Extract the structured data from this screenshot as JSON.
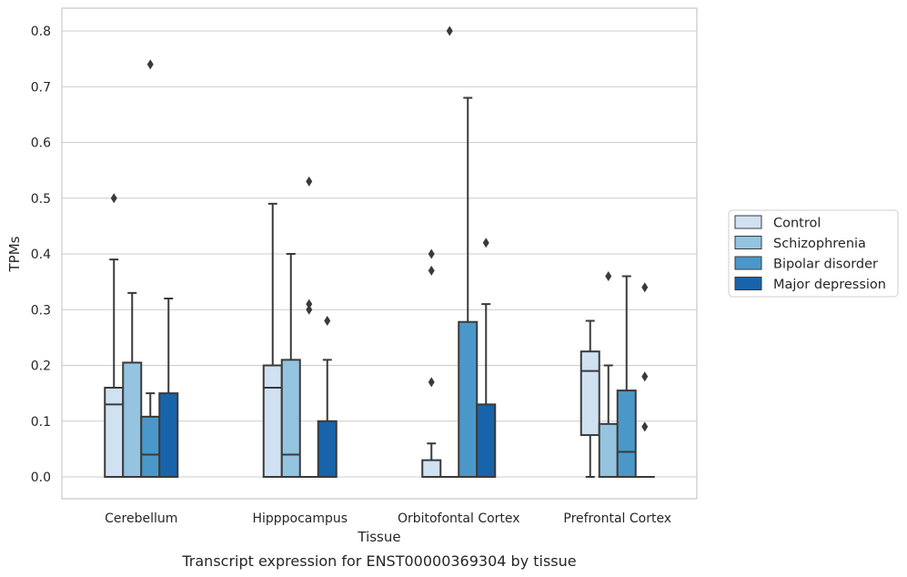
{
  "caption": "Transcript expression for ENST00000369304 by tissue",
  "chart_data": {
    "type": "box",
    "xlabel": "Tissue",
    "ylabel": "TPMs",
    "ylim": [
      -0.04,
      0.84
    ],
    "yticks": [
      "0.0",
      "0.1",
      "0.2",
      "0.3",
      "0.4",
      "0.5",
      "0.6",
      "0.7",
      "0.8"
    ],
    "grid": "horizontal",
    "legend_position": "right",
    "categories": [
      "Cerebellum",
      "Hipppocampus",
      "Orbitofontal Cortex",
      "Prefrontal Cortex"
    ],
    "series": [
      {
        "name": "Control",
        "color": "#d0e1f2",
        "boxes": [
          {
            "q1": 0.0,
            "median": 0.13,
            "q3": 0.16,
            "whisker_low": 0.0,
            "whisker_high": 0.39,
            "outliers": [
              0.5
            ]
          },
          {
            "q1": 0.0,
            "median": 0.16,
            "q3": 0.2,
            "whisker_low": 0.0,
            "whisker_high": 0.49,
            "outliers": []
          },
          {
            "q1": 0.0,
            "median": 0.0,
            "q3": 0.03,
            "whisker_low": 0.0,
            "whisker_high": 0.06,
            "outliers": [
              0.17,
              0.37,
              0.4
            ]
          },
          {
            "q1": 0.075,
            "median": 0.19,
            "q3": 0.225,
            "whisker_low": 0.0,
            "whisker_high": 0.28,
            "outliers": []
          }
        ]
      },
      {
        "name": "Schizophrenia",
        "color": "#94c4df",
        "boxes": [
          {
            "q1": 0.0,
            "median": 0.0,
            "q3": 0.205,
            "whisker_low": 0.0,
            "whisker_high": 0.33,
            "outliers": []
          },
          {
            "q1": 0.0,
            "median": 0.04,
            "q3": 0.21,
            "whisker_low": 0.0,
            "whisker_high": 0.4,
            "outliers": []
          },
          {
            "q1": 0.0,
            "median": 0.0,
            "q3": 0.0,
            "whisker_low": 0.0,
            "whisker_high": 0.0,
            "outliers": [
              0.8
            ]
          },
          {
            "q1": 0.0,
            "median": 0.0,
            "q3": 0.095,
            "whisker_low": 0.0,
            "whisker_high": 0.2,
            "outliers": [
              0.36
            ]
          }
        ]
      },
      {
        "name": "Bipolar disorder",
        "color": "#4a98c9",
        "boxes": [
          {
            "q1": 0.0,
            "median": 0.04,
            "q3": 0.108,
            "whisker_low": 0.0,
            "whisker_high": 0.15,
            "outliers": [
              0.74
            ]
          },
          {
            "q1": 0.0,
            "median": 0.0,
            "q3": 0.0,
            "whisker_low": 0.0,
            "whisker_high": 0.0,
            "outliers": [
              0.3,
              0.31,
              0.53
            ]
          },
          {
            "q1": 0.0,
            "median": 0.0,
            "q3": 0.278,
            "whisker_low": 0.0,
            "whisker_high": 0.68,
            "outliers": []
          },
          {
            "q1": 0.0,
            "median": 0.045,
            "q3": 0.155,
            "whisker_low": 0.0,
            "whisker_high": 0.36,
            "outliers": []
          }
        ]
      },
      {
        "name": "Major depression",
        "color": "#1764ab",
        "boxes": [
          {
            "q1": 0.0,
            "median": 0.0,
            "q3": 0.15,
            "whisker_low": 0.0,
            "whisker_high": 0.32,
            "outliers": []
          },
          {
            "q1": 0.0,
            "median": 0.0,
            "q3": 0.1,
            "whisker_low": 0.0,
            "whisker_high": 0.21,
            "outliers": [
              0.28
            ]
          },
          {
            "q1": 0.0,
            "median": 0.0,
            "q3": 0.13,
            "whisker_low": 0.0,
            "whisker_high": 0.31,
            "outliers": [
              0.42
            ]
          },
          {
            "q1": 0.0,
            "median": 0.0,
            "q3": 0.0,
            "whisker_low": 0.0,
            "whisker_high": 0.0,
            "outliers": [
              0.09,
              0.18,
              0.34
            ]
          }
        ]
      }
    ]
  }
}
